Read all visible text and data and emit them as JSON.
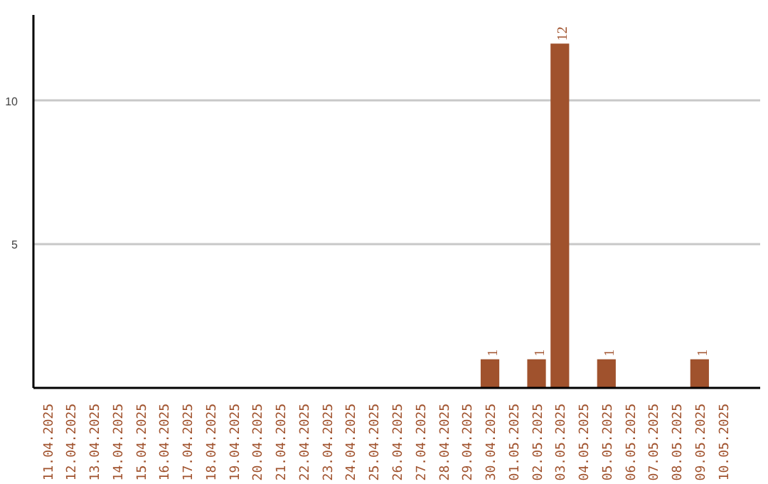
{
  "chart_data": {
    "type": "bar",
    "categories": [
      "11.04.2025",
      "12.04.2025",
      "13.04.2025",
      "14.04.2025",
      "15.04.2025",
      "16.04.2025",
      "17.04.2025",
      "18.04.2025",
      "19.04.2025",
      "20.04.2025",
      "21.04.2025",
      "22.04.2025",
      "23.04.2025",
      "24.04.2025",
      "25.04.2025",
      "26.04.2025",
      "27.04.2025",
      "28.04.2025",
      "29.04.2025",
      "30.04.2025",
      "01.05.2025",
      "02.05.2025",
      "03.05.2025",
      "04.05.2025",
      "05.05.2025",
      "06.05.2025",
      "07.05.2025",
      "08.05.2025",
      "09.05.2025",
      "10.05.2025"
    ],
    "values": [
      0,
      0,
      0,
      0,
      0,
      0,
      0,
      0,
      0,
      0,
      0,
      0,
      0,
      0,
      0,
      0,
      0,
      0,
      0,
      1,
      0,
      1,
      12,
      0,
      1,
      0,
      0,
      0,
      1,
      0
    ],
    "value_labels": [
      null,
      null,
      null,
      null,
      null,
      null,
      null,
      null,
      null,
      null,
      null,
      null,
      null,
      null,
      null,
      null,
      null,
      null,
      null,
      "1",
      null,
      "1",
      "12",
      null,
      "1",
      null,
      null,
      null,
      "1",
      null
    ],
    "color": "#a0522d",
    "ylim": [
      0,
      13
    ],
    "yticks": [
      5,
      10
    ],
    "grid": "y"
  }
}
